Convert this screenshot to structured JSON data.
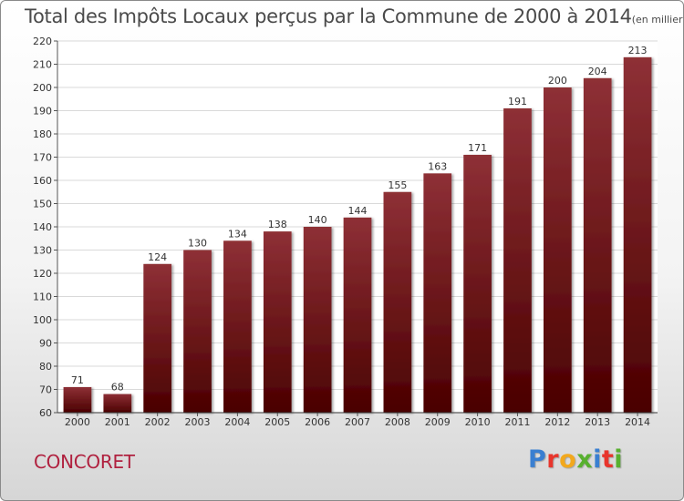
{
  "title": "Total des Impôts Locaux perçus par la Commune de 2000 à 2014",
  "subtitle": "(en milliers d'€)",
  "commune": "CONCORET",
  "logo": {
    "letters": [
      "P",
      "r",
      "o",
      "x",
      "i",
      "t",
      "i"
    ],
    "colors": [
      "#3a7fd1",
      "#e8352c",
      "#f2a81d",
      "#58b02f",
      "#3a7fd1",
      "#e8352c",
      "#58b02f"
    ]
  },
  "chart_data": {
    "type": "bar",
    "categories": [
      "2000",
      "2001",
      "2002",
      "2003",
      "2004",
      "2005",
      "2006",
      "2007",
      "2008",
      "2009",
      "2010",
      "2011",
      "2012",
      "2013",
      "2014"
    ],
    "values": [
      71,
      68,
      124,
      130,
      134,
      138,
      140,
      144,
      155,
      163,
      171,
      191,
      200,
      204,
      213
    ],
    "ylim": [
      60,
      220
    ],
    "yticks": [
      60,
      70,
      80,
      90,
      100,
      110,
      120,
      130,
      140,
      150,
      160,
      170,
      180,
      190,
      200,
      210,
      220
    ],
    "grid": true,
    "bar_color_top": "#8e3036",
    "bar_color_bottom": "#4a0000"
  }
}
